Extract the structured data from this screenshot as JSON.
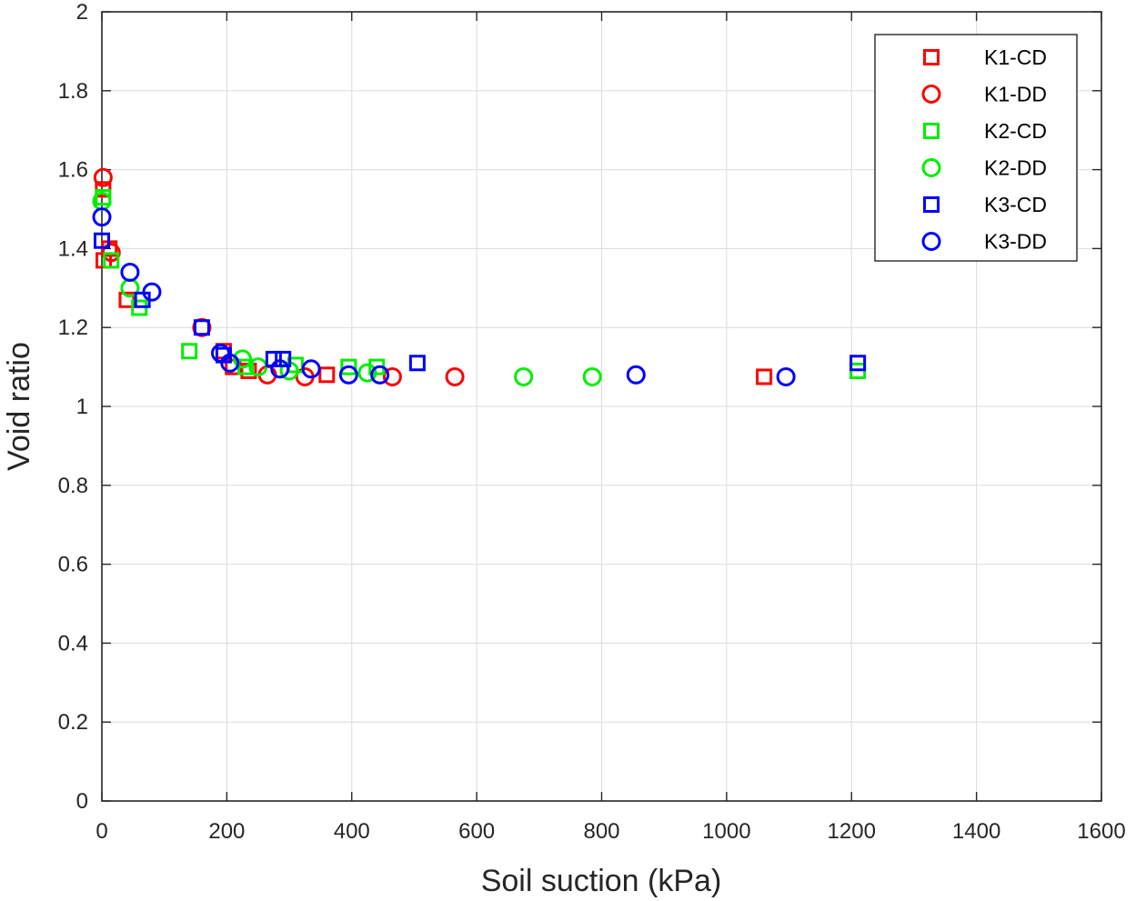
{
  "chart_data": {
    "type": "scatter",
    "title": "",
    "xlabel": "Soil suction (kPa)",
    "ylabel": "Void ratio",
    "xlim": [
      0,
      1600
    ],
    "ylim": [
      0,
      2
    ],
    "xticks": [
      0,
      200,
      400,
      600,
      800,
      1000,
      1200,
      1400,
      1600
    ],
    "yticks": [
      0,
      0.2,
      0.4,
      0.6,
      0.8,
      1,
      1.2,
      1.4,
      1.6,
      1.8,
      2
    ],
    "xtick_labels": [
      "0",
      "200",
      "400",
      "600",
      "800",
      "1000",
      "1200",
      "1400",
      "1600"
    ],
    "ytick_labels": [
      "0",
      "0.2",
      "0.4",
      "0.6",
      "0.8",
      "1",
      "1.2",
      "1.4",
      "1.6",
      "1.8",
      "2"
    ],
    "grid": true,
    "legend_position": "top-right",
    "series": [
      {
        "name": "K1-CD",
        "marker": "square",
        "color": "#ff0000",
        "points": [
          [
            2,
            1.55
          ],
          [
            3,
            1.37
          ],
          [
            12,
            1.4
          ],
          [
            40,
            1.27
          ],
          [
            195,
            1.14
          ],
          [
            210,
            1.1
          ],
          [
            235,
            1.09
          ],
          [
            360,
            1.08
          ],
          [
            1060,
            1.075
          ]
        ]
      },
      {
        "name": "K1-DD",
        "marker": "circle",
        "color": "#ff0000",
        "points": [
          [
            2,
            1.58
          ],
          [
            15,
            1.39
          ],
          [
            160,
            1.2
          ],
          [
            265,
            1.08
          ],
          [
            325,
            1.075
          ],
          [
            465,
            1.075
          ],
          [
            565,
            1.075
          ]
        ]
      },
      {
        "name": "K2-CD",
        "marker": "square",
        "color": "#00ee00",
        "points": [
          [
            2,
            1.53
          ],
          [
            15,
            1.37
          ],
          [
            60,
            1.25
          ],
          [
            140,
            1.14
          ],
          [
            230,
            1.1
          ],
          [
            310,
            1.105
          ],
          [
            395,
            1.1
          ],
          [
            440,
            1.1
          ],
          [
            1210,
            1.09
          ]
        ]
      },
      {
        "name": "K2-DD",
        "marker": "circle",
        "color": "#00ee00",
        "points": [
          [
            0,
            1.52
          ],
          [
            45,
            1.3
          ],
          [
            225,
            1.12
          ],
          [
            250,
            1.1
          ],
          [
            300,
            1.09
          ],
          [
            425,
            1.085
          ],
          [
            675,
            1.075
          ],
          [
            785,
            1.075
          ]
        ]
      },
      {
        "name": "K3-CD",
        "marker": "square",
        "color": "#0000ff",
        "points": [
          [
            0,
            1.42
          ],
          [
            65,
            1.27
          ],
          [
            160,
            1.2
          ],
          [
            195,
            1.13
          ],
          [
            275,
            1.12
          ],
          [
            290,
            1.12
          ],
          [
            505,
            1.11
          ],
          [
            1210,
            1.11
          ]
        ]
      },
      {
        "name": "K3-DD",
        "marker": "circle",
        "color": "#0000ff",
        "points": [
          [
            0,
            1.48
          ],
          [
            45,
            1.34
          ],
          [
            80,
            1.29
          ],
          [
            190,
            1.135
          ],
          [
            205,
            1.11
          ],
          [
            285,
            1.095
          ],
          [
            335,
            1.095
          ],
          [
            395,
            1.08
          ],
          [
            445,
            1.08
          ],
          [
            855,
            1.08
          ],
          [
            1095,
            1.075
          ]
        ]
      }
    ]
  }
}
